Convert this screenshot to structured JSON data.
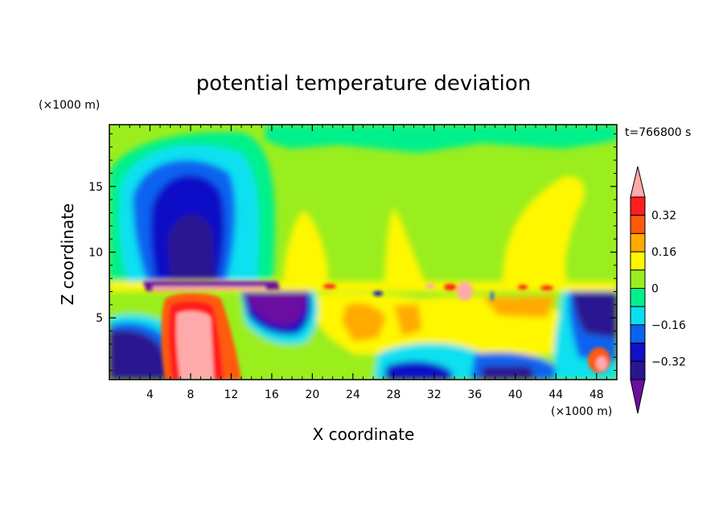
{
  "chart_data": {
    "type": "heatmap",
    "title": "potential temperature deviation",
    "xlabel": "X coordinate",
    "ylabel": "Z coordinate",
    "x_unit": "(×1000 m)",
    "y_unit": "(×1000 m)",
    "time_label": "t=766800 s",
    "xlim": [
      0,
      50
    ],
    "ylim": [
      0.3,
      19.7
    ],
    "x_ticks": [
      4,
      8,
      12,
      16,
      20,
      24,
      28,
      32,
      36,
      40,
      44,
      48
    ],
    "y_ticks": [
      5,
      10,
      15
    ],
    "colorbar": {
      "labels": [
        0.32,
        0.16,
        0,
        -0.16,
        -0.32
      ],
      "label_text": [
        "0.32",
        "0.16",
        "0",
        "−0.16",
        "−0.32"
      ],
      "levels": [
        -0.4,
        -0.32,
        -0.24,
        -0.16,
        -0.08,
        0,
        0.08,
        0.16,
        0.24,
        0.32,
        0.4
      ],
      "colors": [
        "#6a0fa0",
        "#2a1590",
        "#1010c8",
        "#0a64f0",
        "#08e0f0",
        "#00f08c",
        "#9aee1e",
        "#fff700",
        "#ffaa00",
        "#ff5a0a",
        "#ff1e1e",
        "#ffaaaa"
      ]
    },
    "field_regions": [
      {
        "name": "upper-negative-column",
        "x": [
          2,
          16
        ],
        "z": [
          8,
          19
        ],
        "value": -0.2
      },
      {
        "name": "core-negative-column",
        "x": [
          6,
          13
        ],
        "z": [
          8,
          14
        ],
        "value": -0.36
      },
      {
        "name": "lower-left-negative",
        "x": [
          0,
          6
        ],
        "z": [
          0.3,
          4
        ],
        "value": -0.34
      },
      {
        "name": "strong-positive-plume",
        "x": [
          7,
          12
        ],
        "z": [
          0.3,
          6
        ],
        "value": 0.44
      },
      {
        "name": "upper-positive-lobe-1",
        "x": [
          17,
          22
        ],
        "z": [
          8,
          13
        ],
        "value": 0.12
      },
      {
        "name": "upper-positive-lobe-2",
        "x": [
          27,
          31
        ],
        "z": [
          8,
          12.5
        ],
        "value": 0.12
      },
      {
        "name": "upper-positive-lobe-3",
        "x": [
          38,
          47
        ],
        "z": [
          8,
          16
        ],
        "value": 0.12
      },
      {
        "name": "negative-under-layer",
        "x": [
          13,
          20
        ],
        "z": [
          3,
          7
        ],
        "value": -0.36
      },
      {
        "name": "right-negative",
        "x": [
          45,
          50
        ],
        "z": [
          2,
          7
        ],
        "value": -0.36
      },
      {
        "name": "lower-right-positive",
        "x": [
          47,
          50
        ],
        "z": [
          0.3,
          2.5
        ],
        "value": 0.3
      }
    ]
  }
}
